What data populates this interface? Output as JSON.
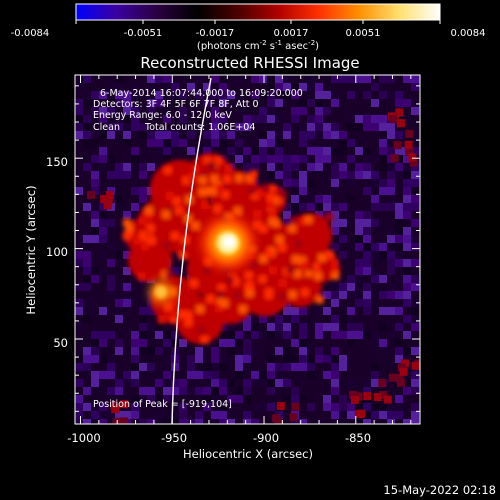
{
  "colorbar": {
    "ticks": [
      "-0.0084",
      "-0.0051",
      "-0.0017",
      "0.0017",
      "0.0051",
      "0.0084"
    ],
    "units_main": "(photons cm",
    "units_exp1": "-2",
    "units_mid": " s",
    "units_exp2": "-1",
    "units_tail": " asec",
    "units_exp3": "-2",
    "units_close": ")",
    "gradient": [
      "#0000ff",
      "#3a00a0",
      "#2a0040",
      "#000000",
      "#4a0000",
      "#b00000",
      "#ff3000",
      "#ff9000",
      "#ffe070",
      "#ffffff"
    ]
  },
  "title": "Reconstructed RHESSI Image",
  "info": {
    "time_range": "6-May-2014 16:07:44.000 to 16:09:20.000",
    "detectors": "Detectors: 3F 4F 5F 6F 7F 8F, Att 0",
    "energy": "Energy Range: 6.0 - 12.0 keV",
    "clean": "Clean",
    "counts": "Total counts: 1.06E+04"
  },
  "peak": "Position of Peak = [-919,104]",
  "axes": {
    "xlabel": "Heliocentric X (arcsec)",
    "ylabel": "Heliocentric Y (arcsec)",
    "xticks": [
      "-1000",
      "-950",
      "-900",
      "-850"
    ],
    "yticks": [
      "50",
      "100",
      "150"
    ]
  },
  "timestamp": "15-May-2022 02:18",
  "image_data": {
    "peak_position": [
      -919,
      104
    ],
    "xlim": [
      -1003,
      -815
    ],
    "ylim": [
      3,
      196
    ],
    "xtick_values": [
      -1000,
      -950,
      -900,
      -850
    ],
    "ytick_values": [
      50,
      100,
      150
    ]
  }
}
